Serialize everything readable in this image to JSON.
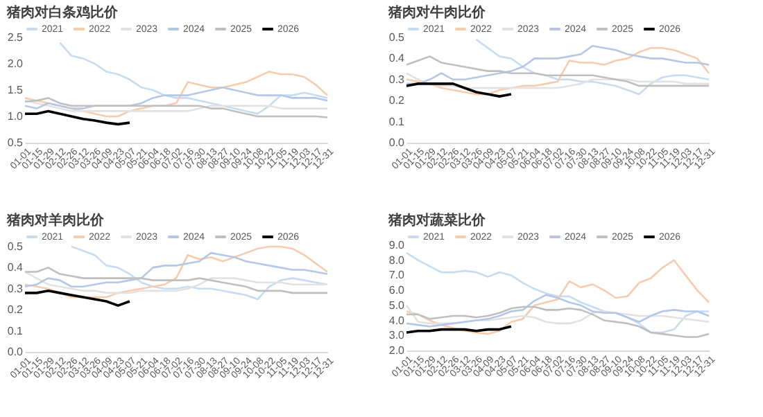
{
  "chart_data": [
    {
      "type": "line",
      "title": "猪肉对白条鸡比价",
      "categories": [
        "01-01",
        "01-15",
        "01-29",
        "02-12",
        "02-26",
        "03-12",
        "03-26",
        "04-09",
        "04-23",
        "05-07",
        "05-21",
        "06-04",
        "06-18",
        "07-02",
        "07-16",
        "07-30",
        "08-13",
        "08-27",
        "09-10",
        "09-24",
        "10-08",
        "10-22",
        "11-05",
        "11-19",
        "12-03",
        "12-17",
        "12-31"
      ],
      "ylim": [
        0.5,
        2.5
      ],
      "yticks": [
        0.5,
        {
          "value": 1,
          "label": "1.0"
        },
        1.5,
        {
          "value": 2,
          "label": "2.0"
        },
        2.5
      ],
      "grid": false,
      "legend": "top",
      "marker": "none",
      "series": [
        {
          "name": "2021",
          "color": "#c5dcf3",
          "values": [
            null,
            null,
            null,
            2.4,
            2.15,
            2.1,
            2.0,
            1.85,
            1.8,
            1.7,
            1.55,
            1.5,
            1.4,
            1.35,
            1.35,
            1.3,
            1.25,
            1.2,
            1.15,
            1.1,
            1.05,
            1.2,
            1.4,
            1.4,
            1.45,
            1.4,
            1.35
          ]
        },
        {
          "name": "2022",
          "color": "#f8cbad",
          "values": [
            1.35,
            1.3,
            1.25,
            1.2,
            1.15,
            1.1,
            1.05,
            1.0,
            1.0,
            1.1,
            1.15,
            1.2,
            1.2,
            1.25,
            1.65,
            1.6,
            1.55,
            1.55,
            1.6,
            1.65,
            1.75,
            1.85,
            1.8,
            1.8,
            1.75,
            1.6,
            1.4
          ]
        },
        {
          "name": "2023",
          "color": "#e2e2e2",
          "values": [
            1.3,
            1.25,
            1.2,
            1.15,
            1.1,
            1.1,
            1.1,
            1.1,
            1.1,
            1.1,
            1.1,
            1.1,
            1.1,
            1.1,
            1.1,
            1.15,
            1.2,
            1.2,
            1.2,
            1.2,
            1.2,
            1.2,
            1.15,
            1.15,
            1.15,
            1.15,
            1.15
          ]
        },
        {
          "name": "2024",
          "color": "#b4c7e7",
          "values": [
            1.2,
            1.15,
            1.25,
            1.2,
            1.15,
            1.15,
            1.2,
            1.2,
            1.2,
            1.2,
            1.25,
            1.35,
            1.4,
            1.4,
            1.4,
            1.45,
            1.5,
            1.55,
            1.5,
            1.45,
            1.4,
            1.4,
            1.4,
            1.35,
            1.35,
            1.35,
            1.3
          ]
        },
        {
          "name": "2025",
          "color": "#bfbfbf",
          "values": [
            1.28,
            1.3,
            1.35,
            1.25,
            1.2,
            1.2,
            1.2,
            1.2,
            1.2,
            1.2,
            1.2,
            1.2,
            1.2,
            1.2,
            1.2,
            1.2,
            1.15,
            1.15,
            1.1,
            1.05,
            1.0,
            1.0,
            1.0,
            1.0,
            1.0,
            1.0,
            0.98
          ]
        },
        {
          "name": "2026",
          "color": "#000000",
          "values": [
            1.05,
            1.05,
            1.1,
            1.05,
            1.0,
            0.95,
            0.92,
            0.88,
            0.85,
            0.88,
            null,
            null,
            null,
            null,
            null,
            null,
            null,
            null,
            null,
            null,
            null,
            null,
            null,
            null,
            null,
            null,
            null
          ]
        }
      ]
    },
    {
      "type": "line",
      "title": "猪肉对牛肉比价",
      "categories": [
        "01-01",
        "01-15",
        "01-29",
        "02-12",
        "02-26",
        "03-12",
        "03-26",
        "04-09",
        "04-23",
        "05-07",
        "05-21",
        "06-04",
        "06-18",
        "07-02",
        "07-16",
        "07-30",
        "08-13",
        "08-27",
        "09-10",
        "09-24",
        "10-08",
        "10-22",
        "11-05",
        "11-19",
        "12-03",
        "12-17",
        "12-31"
      ],
      "ylim": [
        0,
        0.5
      ],
      "yticks": [
        {
          "value": 0,
          "label": "0.0"
        },
        0.1,
        0.2,
        0.3,
        0.4,
        0.5
      ],
      "grid": false,
      "legend": "top",
      "marker": "none",
      "series": [
        {
          "name": "2021",
          "color": "#c5dcf3",
          "values": [
            null,
            null,
            null,
            null,
            null,
            null,
            0.49,
            0.45,
            0.41,
            0.4,
            0.36,
            0.33,
            0.32,
            0.3,
            0.3,
            0.29,
            0.29,
            0.28,
            0.27,
            0.25,
            0.23,
            0.28,
            0.31,
            0.32,
            0.32,
            0.31,
            0.3
          ]
        },
        {
          "name": "2022",
          "color": "#f8cbad",
          "values": [
            0.3,
            0.29,
            0.28,
            0.26,
            0.25,
            0.24,
            0.23,
            0.23,
            0.25,
            0.26,
            0.27,
            0.27,
            0.28,
            0.29,
            0.39,
            0.38,
            0.38,
            0.37,
            0.39,
            0.4,
            0.43,
            0.45,
            0.45,
            0.44,
            0.42,
            0.4,
            0.33
          ]
        },
        {
          "name": "2023",
          "color": "#e2e2e2",
          "values": [
            0.33,
            0.3,
            0.28,
            0.27,
            0.27,
            0.26,
            0.26,
            0.26,
            0.26,
            0.26,
            0.26,
            0.26,
            0.26,
            0.26,
            0.27,
            0.28,
            0.3,
            0.3,
            0.3,
            0.3,
            0.29,
            0.29,
            0.29,
            0.29,
            0.28,
            0.28,
            0.28
          ]
        },
        {
          "name": "2024",
          "color": "#b4c7e7",
          "values": [
            0.28,
            0.28,
            0.3,
            0.33,
            0.3,
            0.3,
            0.31,
            0.32,
            0.33,
            0.34,
            0.36,
            0.4,
            0.4,
            0.4,
            0.41,
            0.42,
            0.46,
            0.45,
            0.44,
            0.42,
            0.41,
            0.4,
            0.4,
            0.39,
            0.38,
            0.38,
            0.37
          ]
        },
        {
          "name": "2025",
          "color": "#bfbfbf",
          "values": [
            0.37,
            0.39,
            0.41,
            0.38,
            0.37,
            0.36,
            0.35,
            0.34,
            0.34,
            0.33,
            0.33,
            0.33,
            0.32,
            0.32,
            0.32,
            0.32,
            0.32,
            0.31,
            0.3,
            0.29,
            0.27,
            0.27,
            0.27,
            0.27,
            0.27,
            0.27,
            0.27
          ]
        },
        {
          "name": "2026",
          "color": "#000000",
          "values": [
            0.27,
            0.28,
            0.28,
            0.28,
            0.28,
            0.26,
            0.24,
            0.23,
            0.22,
            0.23,
            null,
            null,
            null,
            null,
            null,
            null,
            null,
            null,
            null,
            null,
            null,
            null,
            null,
            null,
            null,
            null,
            null
          ]
        }
      ]
    },
    {
      "type": "line",
      "title": "猪肉对羊肉比价",
      "categories": [
        "01-01",
        "01-15",
        "01-29",
        "02-12",
        "02-26",
        "03-12",
        "03-26",
        "04-09",
        "04-23",
        "05-07",
        "05-21",
        "06-04",
        "06-18",
        "07-02",
        "07-16",
        "07-30",
        "08-13",
        "08-27",
        "09-10",
        "09-24",
        "10-08",
        "10-22",
        "11-05",
        "11-19",
        "12-03",
        "12-17",
        "12-31"
      ],
      "ylim": [
        0,
        0.5
      ],
      "yticks": [
        {
          "value": 0,
          "label": "0.0"
        },
        0.1,
        0.2,
        0.3,
        0.4,
        0.5
      ],
      "grid": false,
      "legend": "top",
      "marker": "none",
      "series": [
        {
          "name": "2021",
          "color": "#c5dcf3",
          "values": [
            null,
            null,
            null,
            null,
            0.5,
            0.48,
            0.46,
            0.41,
            0.4,
            0.37,
            0.33,
            0.31,
            0.3,
            0.3,
            0.31,
            0.3,
            0.3,
            0.29,
            0.28,
            0.27,
            0.25,
            0.31,
            0.34,
            0.35,
            0.34,
            0.33,
            0.32
          ]
        },
        {
          "name": "2022",
          "color": "#f8cbad",
          "values": [
            0.32,
            0.31,
            0.3,
            0.28,
            0.26,
            0.26,
            0.26,
            0.26,
            0.28,
            0.29,
            0.3,
            0.31,
            0.32,
            0.35,
            0.46,
            0.44,
            0.45,
            0.43,
            0.45,
            0.47,
            0.49,
            0.5,
            0.5,
            0.49,
            0.46,
            0.42,
            0.38
          ]
        },
        {
          "name": "2023",
          "color": "#e2e2e2",
          "values": [
            0.38,
            0.35,
            0.32,
            0.31,
            0.3,
            0.29,
            0.29,
            0.28,
            0.28,
            0.28,
            0.29,
            0.29,
            0.29,
            0.29,
            0.3,
            0.32,
            0.35,
            0.35,
            0.35,
            0.34,
            0.33,
            0.33,
            0.33,
            0.32,
            0.32,
            0.32,
            0.32
          ]
        },
        {
          "name": "2024",
          "color": "#b4c7e7",
          "values": [
            0.31,
            0.32,
            0.35,
            0.34,
            0.31,
            0.31,
            0.32,
            0.33,
            0.33,
            0.34,
            0.35,
            0.4,
            0.41,
            0.41,
            0.42,
            0.43,
            0.47,
            0.46,
            0.45,
            0.43,
            0.42,
            0.41,
            0.4,
            0.39,
            0.39,
            0.38,
            0.37
          ]
        },
        {
          "name": "2025",
          "color": "#bfbfbf",
          "values": [
            0.38,
            0.38,
            0.4,
            0.37,
            0.36,
            0.35,
            0.35,
            0.35,
            0.35,
            0.35,
            0.35,
            0.34,
            0.34,
            0.34,
            0.34,
            0.35,
            0.34,
            0.33,
            0.32,
            0.31,
            0.29,
            0.29,
            0.29,
            0.28,
            0.28,
            0.28,
            0.28
          ]
        },
        {
          "name": "2026",
          "color": "#000000",
          "values": [
            0.28,
            0.28,
            0.29,
            0.28,
            0.27,
            0.26,
            0.25,
            0.24,
            0.22,
            0.24,
            null,
            null,
            null,
            null,
            null,
            null,
            null,
            null,
            null,
            null,
            null,
            null,
            null,
            null,
            null,
            null,
            null
          ]
        }
      ]
    },
    {
      "type": "line",
      "title": "猪肉对蔬菜比价",
      "categories": [
        "01-01",
        "01-15",
        "01-29",
        "02-12",
        "02-26",
        "03-12",
        "03-26",
        "04-09",
        "04-23",
        "05-07",
        "05-21",
        "06-04",
        "06-18",
        "07-02",
        "07-16",
        "07-30",
        "08-13",
        "08-27",
        "09-10",
        "09-24",
        "10-08",
        "10-22",
        "11-05",
        "11-19",
        "12-03",
        "12-17",
        "12-31"
      ],
      "ylim": [
        2,
        9
      ],
      "yticks": [
        {
          "value": 2,
          "label": "2.0"
        },
        {
          "value": 3,
          "label": "3.0"
        },
        {
          "value": 4,
          "label": "4.0"
        },
        {
          "value": 5,
          "label": "5.0"
        },
        {
          "value": 6,
          "label": "6.0"
        },
        {
          "value": 7,
          "label": "7.0"
        },
        {
          "value": 8,
          "label": "8.0"
        },
        {
          "value": 9,
          "label": "9.0"
        }
      ],
      "grid": false,
      "legend": "top",
      "marker": "none",
      "series": [
        {
          "name": "2021",
          "color": "#c5dcf3",
          "values": [
            8.5,
            8.0,
            7.6,
            7.2,
            7.2,
            7.3,
            7.2,
            6.9,
            7.2,
            7.0,
            6.5,
            6.1,
            5.8,
            5.6,
            5.6,
            5.2,
            4.9,
            4.6,
            4.5,
            4.2,
            3.8,
            3.2,
            3.2,
            3.4,
            4.3,
            4.6,
            4.6
          ]
        },
        {
          "name": "2022",
          "color": "#f8cbad",
          "values": [
            4.6,
            4.4,
            4.0,
            3.7,
            3.5,
            3.3,
            3.2,
            3.1,
            3.3,
            3.9,
            4.1,
            5.0,
            5.2,
            5.4,
            6.6,
            6.2,
            6.4,
            6.0,
            5.5,
            5.6,
            6.5,
            6.8,
            7.5,
            8.0,
            7.0,
            6.0,
            5.2
          ]
        },
        {
          "name": "2023",
          "color": "#e2e2e2",
          "values": [
            5.0,
            3.9,
            3.8,
            3.8,
            3.8,
            3.9,
            4.0,
            4.0,
            4.1,
            4.2,
            4.3,
            4.2,
            3.9,
            3.8,
            3.8,
            4.0,
            4.5,
            4.6,
            4.5,
            4.4,
            4.3,
            4.3,
            4.3,
            4.2,
            4.1,
            4.0,
            3.9
          ]
        },
        {
          "name": "2024",
          "color": "#b4c7e7",
          "values": [
            3.8,
            3.7,
            3.6,
            3.7,
            3.8,
            3.9,
            4.0,
            4.1,
            4.3,
            4.6,
            4.7,
            5.3,
            5.7,
            5.5,
            5.2,
            5.0,
            4.6,
            4.5,
            4.5,
            4.2,
            3.9,
            4.3,
            4.6,
            4.7,
            4.6,
            4.6,
            4.3
          ]
        },
        {
          "name": "2025",
          "color": "#bfbfbf",
          "values": [
            4.4,
            4.4,
            4.1,
            4.2,
            4.3,
            4.3,
            4.2,
            4.3,
            4.5,
            4.8,
            4.9,
            4.9,
            4.7,
            4.7,
            4.8,
            4.7,
            4.4,
            4.0,
            3.9,
            3.8,
            3.6,
            3.2,
            3.1,
            3.0,
            2.9,
            2.9,
            3.1
          ]
        },
        {
          "name": "2026",
          "color": "#000000",
          "values": [
            3.2,
            3.3,
            3.3,
            3.4,
            3.4,
            3.4,
            3.3,
            3.4,
            3.4,
            3.6,
            null,
            null,
            null,
            null,
            null,
            null,
            null,
            null,
            null,
            null,
            null,
            null,
            null,
            null,
            null,
            null,
            null
          ]
        }
      ]
    }
  ]
}
